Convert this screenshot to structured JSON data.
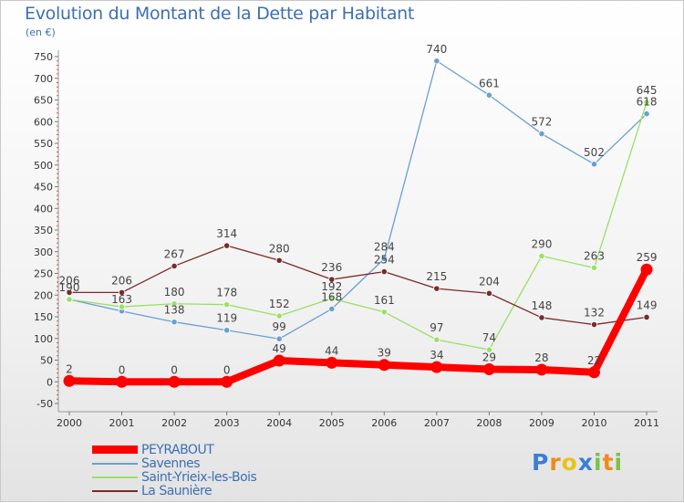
{
  "chart_data": {
    "type": "line",
    "title": "Evolution du Montant de la Dette par Habitant",
    "subtitle": "(en €)",
    "categories": [
      "2000",
      "2001",
      "2002",
      "2003",
      "2004",
      "2005",
      "2006",
      "2007",
      "2008",
      "2009",
      "2010",
      "2011"
    ],
    "ylim": [
      -50,
      750
    ],
    "yticks": [
      "-50",
      "0",
      "50",
      "100",
      "150",
      "200",
      "250",
      "300",
      "350",
      "400",
      "450",
      "500",
      "550",
      "600",
      "650",
      "700",
      "750"
    ],
    "grid": false,
    "legend_position": "bottom-left",
    "series": [
      {
        "name": "PEYRABOUT",
        "color": "#ff0000",
        "values": [
          2,
          0,
          0,
          0,
          49,
          44,
          39,
          34,
          29,
          28,
          22,
          259
        ]
      },
      {
        "name": "Savennes",
        "color": "#6a9fd4",
        "values": [
          190,
          163,
          138,
          119,
          99,
          168,
          284,
          740,
          661,
          572,
          502,
          618
        ]
      },
      {
        "name": "Saint-Yrieix-les-Bois",
        "color": "#99e066",
        "values": [
          190,
          173,
          180,
          178,
          152,
          192,
          161,
          97,
          74,
          290,
          263,
          645
        ]
      },
      {
        "name": "La Saunière",
        "color": "#7a2a2a",
        "values": [
          206,
          206,
          267,
          314,
          280,
          236,
          254,
          215,
          204,
          148,
          132,
          149
        ]
      }
    ],
    "data_labels": [
      [
        {
          "i": 0,
          "text": "2"
        },
        {
          "i": 1,
          "text": "0"
        },
        {
          "i": 2,
          "text": "0"
        },
        {
          "i": 3,
          "text": "0"
        },
        {
          "i": 4,
          "text": "49"
        },
        {
          "i": 5,
          "text": "44"
        },
        {
          "i": 6,
          "text": "39"
        },
        {
          "i": 7,
          "text": "34"
        },
        {
          "i": 8,
          "text": "29"
        },
        {
          "i": 9,
          "text": "28"
        },
        {
          "i": 10,
          "text": "22"
        },
        {
          "i": 11,
          "text": "259"
        }
      ],
      [
        {
          "i": 1,
          "text": "163"
        },
        {
          "i": 2,
          "text": "138"
        },
        {
          "i": 3,
          "text": "119"
        },
        {
          "i": 4,
          "text": "99"
        },
        {
          "i": 5,
          "text": "168"
        },
        {
          "i": 6,
          "text": "284"
        },
        {
          "i": 7,
          "text": "740"
        },
        {
          "i": 8,
          "text": "661"
        },
        {
          "i": 9,
          "text": "572"
        },
        {
          "i": 10,
          "text": "502"
        },
        {
          "i": 11,
          "text": "618"
        }
      ],
      [
        {
          "i": 0,
          "text": "190"
        },
        {
          "i": 2,
          "text": "180"
        },
        {
          "i": 3,
          "text": "178"
        },
        {
          "i": 4,
          "text": "152"
        },
        {
          "i": 5,
          "text": "192"
        },
        {
          "i": 6,
          "text": "161"
        },
        {
          "i": 7,
          "text": "97"
        },
        {
          "i": 8,
          "text": "74"
        },
        {
          "i": 9,
          "text": "290"
        },
        {
          "i": 10,
          "text": "263"
        },
        {
          "i": 11,
          "text": "645"
        }
      ],
      [
        {
          "i": 0,
          "text": "206"
        },
        {
          "i": 1,
          "text": "206"
        },
        {
          "i": 2,
          "text": "267"
        },
        {
          "i": 3,
          "text": "314"
        },
        {
          "i": 4,
          "text": "280"
        },
        {
          "i": 5,
          "text": "236"
        },
        {
          "i": 6,
          "text": "254"
        },
        {
          "i": 7,
          "text": "215"
        },
        {
          "i": 8,
          "text": "204"
        },
        {
          "i": 9,
          "text": "148"
        },
        {
          "i": 10,
          "text": "132"
        },
        {
          "i": 11,
          "text": "149"
        }
      ]
    ]
  },
  "brand": {
    "letters": [
      "P",
      "r",
      "o",
      "x",
      "i",
      "t",
      "i"
    ],
    "colors": [
      "#3b7dd8",
      "#f08a1c",
      "#e8c21a",
      "#3b7dd8",
      "#7cc242",
      "#f08a1c",
      "#7cc242"
    ]
  }
}
